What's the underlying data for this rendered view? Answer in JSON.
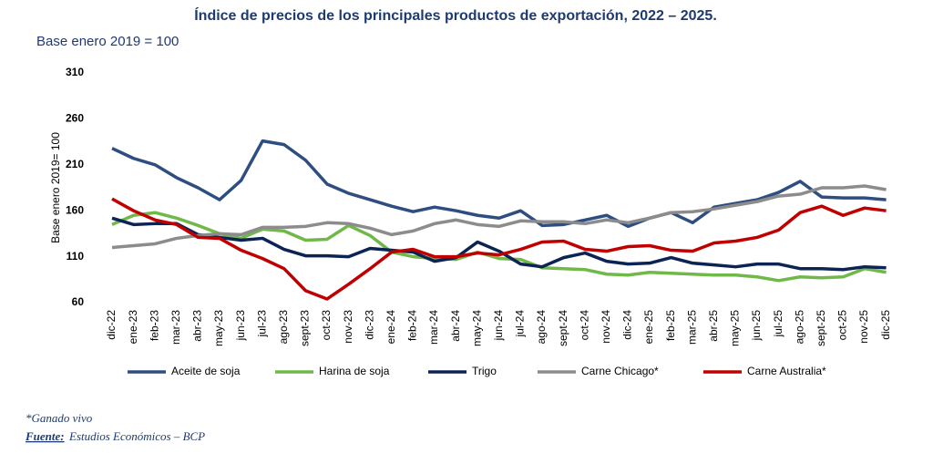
{
  "chart_data": {
    "type": "line",
    "title": "Índice de precios de los principales productos de exportación, 2022 – 2025.",
    "subtitle": "Base enero 2019 = 100",
    "y_label": "Base enero 2019= 100",
    "categories": [
      "dic-22",
      "ene-23",
      "feb-23",
      "mar-23",
      "abr-23",
      "may-23",
      "jun-23",
      "jul-23",
      "ago-23",
      "sept-23",
      "oct-23",
      "nov-23",
      "dic-23",
      "ene-24",
      "feb-24",
      "mar-24",
      "abr-24",
      "may-24",
      "jun-24",
      "jul-24",
      "ago-24",
      "sept-24",
      "oct-24",
      "nov-24",
      "dic-24",
      "ene-25",
      "feb-25",
      "mar-25",
      "abr-25",
      "may-25",
      "jun-25",
      "jul-25",
      "ago-25",
      "sept-25",
      "oct-25",
      "nov-25",
      "dic-25"
    ],
    "series": [
      {
        "name": "Aceite de soja",
        "color": "#2e4d80",
        "values": [
          228,
          217,
          210,
          196,
          185,
          172,
          193,
          236,
          232,
          215,
          189,
          179,
          172,
          165,
          159,
          164,
          160,
          155,
          152,
          160,
          144,
          145,
          150,
          155,
          143,
          152,
          158,
          147,
          164,
          168,
          172,
          180,
          192,
          175,
          174,
          174,
          172
        ]
      },
      {
        "name": "Harina de soja",
        "color": "#70b84a",
        "values": [
          145,
          155,
          158,
          152,
          144,
          135,
          130,
          140,
          138,
          128,
          129,
          144,
          133,
          115,
          110,
          108,
          107,
          115,
          108,
          107,
          98,
          97,
          96,
          91,
          90,
          93,
          92,
          91,
          90,
          90,
          88,
          84,
          88,
          87,
          88,
          97,
          93
        ]
      },
      {
        "name": "Trigo",
        "color": "#0b2454",
        "values": [
          152,
          145,
          146,
          146,
          134,
          131,
          128,
          130,
          118,
          111,
          111,
          110,
          119,
          117,
          115,
          105,
          109,
          126,
          116,
          102,
          99,
          109,
          114,
          105,
          102,
          103,
          109,
          103,
          101,
          99,
          102,
          102,
          97,
          97,
          96,
          99,
          98
        ]
      },
      {
        "name": "Carne Chicago*",
        "color": "#8c8c8c",
        "values": [
          120,
          122,
          124,
          130,
          133,
          135,
          134,
          142,
          142,
          143,
          147,
          146,
          141,
          134,
          138,
          146,
          150,
          145,
          143,
          149,
          148,
          148,
          146,
          150,
          147,
          152,
          158,
          159,
          162,
          166,
          170,
          176,
          178,
          185,
          185,
          187,
          183
        ]
      },
      {
        "name": "Carne Australia*",
        "color": "#c00000",
        "values": [
          173,
          160,
          150,
          145,
          131,
          130,
          117,
          108,
          97,
          73,
          64,
          80,
          97,
          115,
          118,
          110,
          110,
          114,
          112,
          118,
          126,
          127,
          118,
          116,
          121,
          122,
          117,
          116,
          125,
          127,
          131,
          139,
          158,
          165,
          155,
          163,
          160
        ]
      }
    ],
    "ylim": [
      60,
      310
    ],
    "yticks": [
      60,
      110,
      160,
      210,
      260,
      310
    ],
    "grid": false
  },
  "footnote": "*Ganado vivo",
  "source_label": "Fuente:",
  "source": "Estudios Económicos – BCP"
}
